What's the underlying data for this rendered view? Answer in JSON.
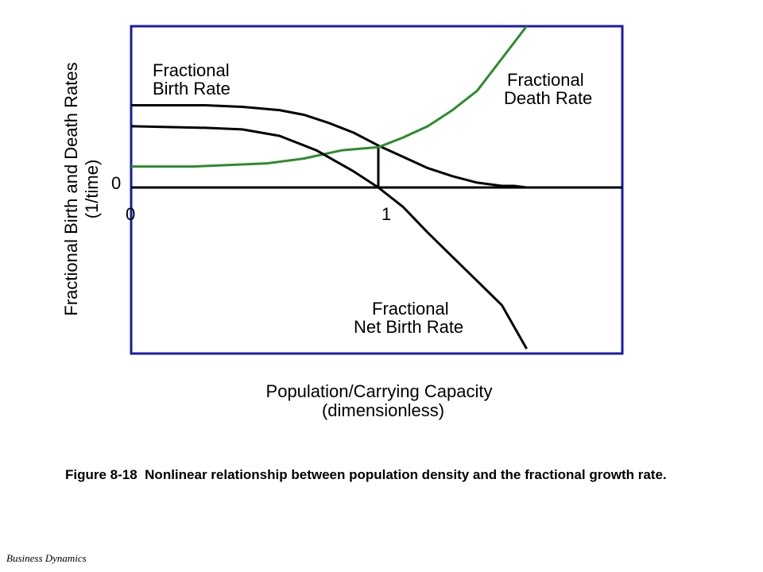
{
  "caption": {
    "figure": "Figure 8-18",
    "text": "Nonlinear relationship between population density and the fractional growth rate."
  },
  "footer": "Business Dynamics",
  "chart_data": {
    "type": "line",
    "xlabel": [
      "Population/Carrying Capacity",
      "(dimensionless)"
    ],
    "ylabel": [
      "Fractional Birth and Death Rates",
      "(1/time)"
    ],
    "x_ticks": [
      "0",
      "1"
    ],
    "y_ticks": [
      "0"
    ],
    "xlim": [
      0,
      2
    ],
    "ylim": [
      -1.0,
      1.0
    ],
    "grid": false,
    "colors": {
      "birth": "#000000",
      "death": "#2e8b2e",
      "net": "#000000",
      "frame": "#1a1ab0",
      "marker": "#000000"
    },
    "marker_x": 1,
    "series": [
      {
        "key": "birth",
        "name": [
          "Fractional",
          "Birth Rate"
        ],
        "x": [
          0,
          0.3,
          0.45,
          0.6,
          0.7,
          0.8,
          0.9,
          1.0,
          1.1,
          1.2,
          1.3,
          1.4,
          1.5,
          1.55,
          1.6
        ],
        "y": [
          0.51,
          0.51,
          0.5,
          0.48,
          0.45,
          0.4,
          0.34,
          0.26,
          0.19,
          0.12,
          0.07,
          0.03,
          0.01,
          0.01,
          0
        ]
      },
      {
        "key": "death",
        "name": [
          "Fractional",
          "Death Rate"
        ],
        "x": [
          0,
          0.25,
          0.4,
          0.55,
          0.7,
          0.85,
          1.0,
          1.1,
          1.2,
          1.3,
          1.4,
          1.5,
          1.6
        ],
        "y": [
          0.13,
          0.13,
          0.14,
          0.15,
          0.18,
          0.23,
          0.25,
          0.31,
          0.38,
          0.48,
          0.6,
          0.8,
          1.0
        ]
      },
      {
        "key": "net",
        "name": [
          "Fractional",
          "Net Birth Rate"
        ],
        "x": [
          0,
          0.3,
          0.45,
          0.6,
          0.75,
          0.9,
          1.0,
          1.1,
          1.2,
          1.3,
          1.4,
          1.5,
          1.6
        ],
        "y": [
          0.38,
          0.37,
          0.36,
          0.32,
          0.23,
          0.1,
          0.0,
          -0.12,
          -0.28,
          -0.43,
          -0.58,
          -0.73,
          -1.0
        ]
      }
    ]
  }
}
